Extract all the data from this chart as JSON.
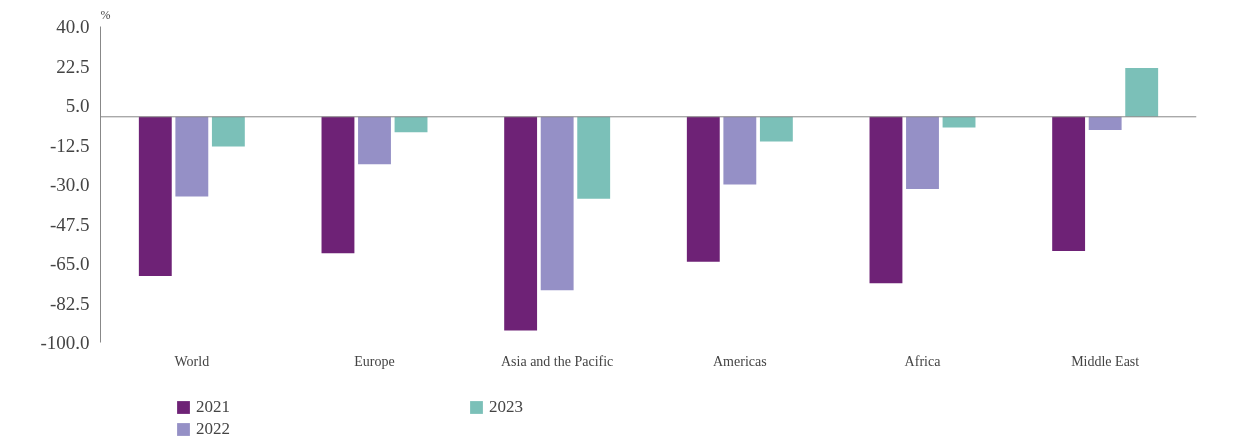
{
  "chart_data": {
    "type": "bar",
    "ylabel": "%",
    "categories": [
      "World",
      "Europe",
      "Asia and the Pacific",
      "Americas",
      "Africa",
      "Middle East"
    ],
    "series": [
      {
        "name": "2021",
        "color": "#6e2276",
        "values": [
          -70.5,
          -60.5,
          -94.7,
          -64.2,
          -73.7,
          -59.5
        ]
      },
      {
        "name": "2022",
        "color": "#9590c6",
        "values": [
          -35.3,
          -21,
          -76.8,
          -30,
          -32,
          -5.8
        ]
      },
      {
        "name": "2023",
        "color": "#7bc0b8",
        "values": [
          -13.2,
          -6.8,
          -36.3,
          -11,
          -4.7,
          21.6
        ]
      }
    ],
    "ylim": [
      -100,
      40
    ],
    "yticks": [
      {
        "value": 40,
        "label": "40.0"
      },
      22.5,
      {
        "value": 5,
        "label": "5.0"
      },
      -12.5,
      {
        "value": -30,
        "label": "-30.0"
      },
      -47.5,
      {
        "value": -65,
        "label": "-65.0"
      },
      -82.5,
      {
        "value": -100,
        "label": "-100.0"
      }
    ],
    "grid": false,
    "legend": "bottom"
  }
}
